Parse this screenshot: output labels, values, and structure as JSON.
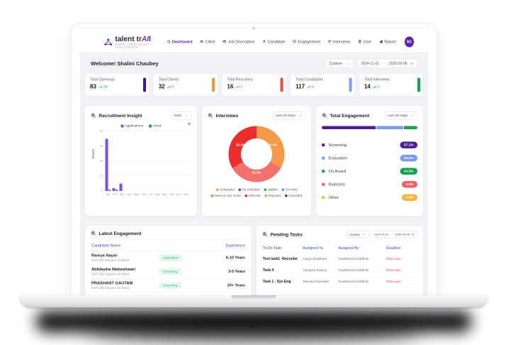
{
  "brand": {
    "name_prefix": "talent tr",
    "name_accent": "AI",
    "name_suffix": "l",
    "tagline": "SPEED | PRECISION | INTELLIGENCE"
  },
  "navbar": {
    "items": [
      {
        "label": "Dashboard",
        "icon": "home-icon",
        "active": true
      },
      {
        "label": "Client",
        "icon": "users-icon",
        "active": false
      },
      {
        "label": "Job Description",
        "icon": "briefcase-icon",
        "active": false
      },
      {
        "label": "Candidate",
        "icon": "user-icon",
        "active": false
      },
      {
        "label": "Engagement",
        "icon": "engagement-icon",
        "active": false
      },
      {
        "label": "Interviews",
        "icon": "interview-icon",
        "active": false
      },
      {
        "label": "User",
        "icon": "building-icon",
        "active": false
      },
      {
        "label": "Report",
        "icon": "report-icon",
        "active": false
      }
    ],
    "avatar_initials": "SC"
  },
  "welcome": {
    "greeting": "Welcome! Shalini Chaubey",
    "preset": "Custom",
    "date_start": "2024-11-01",
    "date_separator": "→",
    "date_end": "2025-03-06"
  },
  "stats": [
    {
      "label": "Total Openings",
      "value": "83",
      "delta": "30",
      "accent": "#47109e"
    },
    {
      "label": "Total Clients",
      "value": "32",
      "delta": "6",
      "accent": "#f8992d"
    },
    {
      "label": "Total Recruiters",
      "value": "16",
      "delta": "1",
      "accent": "#f4453e"
    },
    {
      "label": "Total Candidates",
      "value": "117",
      "delta": "4",
      "accent": "#7c9bf4"
    },
    {
      "label": "Total Interviews",
      "value": "14",
      "delta": "3",
      "accent": "#12a34e"
    }
  ],
  "chart_data": [
    {
      "type": "bar",
      "title": "Recruitment Insight",
      "filter": "2025",
      "ylabel": "Counts",
      "ylim": [
        0,
        40
      ],
      "yticks": [
        40,
        30,
        20,
        10,
        0
      ],
      "categories": [
        "Jan",
        "Feb",
        "Mar",
        "Apr",
        "May",
        "Jun",
        "Jul",
        "Aug",
        "Sep",
        "Oct",
        "Nov",
        "Dec"
      ],
      "series": [
        {
          "name": "Applications",
          "color": "#7b52e3",
          "values": [
            35,
            2,
            5,
            0,
            0,
            0,
            0,
            0,
            0,
            0,
            0,
            0
          ]
        },
        {
          "name": "Hired",
          "color": "#1fa750",
          "values": [
            1,
            1,
            0,
            0,
            0,
            0,
            0,
            0,
            0,
            0,
            0,
            0
          ]
        }
      ]
    },
    {
      "type": "donut",
      "title": "Interviews",
      "filter": "Last 30 Days",
      "slices": [
        {
          "label": "Scheduled",
          "pct_label": "33.3%",
          "value": 33.3,
          "color": "#f2994a"
        },
        {
          "label": "Move to next round",
          "pct_label": "33.3%",
          "value": 33.3,
          "color": "#f2716d"
        },
        {
          "label": "Selected",
          "pct_label": "33.3%",
          "value": 33.3,
          "color": "#eb2d2e"
        }
      ],
      "legend": [
        {
          "label": "Scheduled",
          "color": "#f2994a"
        },
        {
          "label": "Re-Schedule",
          "color": "#4338ca"
        },
        {
          "label": "Waitlist",
          "color": "#18a64b"
        },
        {
          "label": "On Hold",
          "color": "#5b8def"
        },
        {
          "label": "Move to next round",
          "color": "#f2716d"
        },
        {
          "label": "Selected",
          "color": "#eb2d2e"
        },
        {
          "label": "Rejected",
          "color": "#f2994a"
        },
        {
          "label": "Cancelled",
          "color": "#4c1d95"
        }
      ]
    }
  ],
  "engagement": {
    "title": "Total Engagement",
    "filter": "Last 30 Days",
    "rows": [
      {
        "label": "Screening",
        "pct": "57.1%",
        "value": 57.1,
        "color": "#4c1d95"
      },
      {
        "label": "Evaluation",
        "pct": "28.6%",
        "value": 28.6,
        "color": "#7c9bf4"
      },
      {
        "label": "On-Board",
        "pct": "14.3%",
        "value": 14.3,
        "color": "#12a34e"
      },
      {
        "label": "Rejected",
        "pct": "0.0%",
        "value": 0,
        "color": "#f4605c"
      },
      {
        "label": "Other",
        "pct": "0.0%",
        "value": 0,
        "color": "#f5b53f"
      }
    ]
  },
  "latest_engagement": {
    "title": "Latest Engagement",
    "columns": [
      "Candidate Name",
      "Experience"
    ],
    "rows": [
      {
        "name": "Ramya Nayar",
        "role": "SAP QM Solution Architect",
        "status": "evaluation",
        "experience": "6-10 Years"
      },
      {
        "name": "Abhilasha Maheshwari",
        "role": "SAP QM Solution Architect",
        "status": "screening",
        "experience": "3-5 Years"
      },
      {
        "name": "PRASHANT GAUTAM",
        "role": "SAP QM Solution Architect",
        "status": "screening",
        "experience": "10+ Years"
      }
    ]
  },
  "pending_tasks": {
    "title": "Pending Tasks",
    "preset": "Custom",
    "date_start": "2024-11-01",
    "date_separator": "→",
    "date_end": "2025-03-06",
    "columns": [
      "To Do Task",
      "Assigned To",
      "Assigned By",
      "Deadline"
    ],
    "rows": [
      {
        "task": "Test task1 -Recruiter",
        "assigned_to": "Aarya Gowtham",
        "assigned_by": "Sowthamini Karthick",
        "deadline": "Time over"
      },
      {
        "task": "Task 4",
        "assigned_to": "Sanjana Sivaraj",
        "assigned_by": "Sowthamini Karthick",
        "deadline": "Time over"
      },
      {
        "task": "Task 1 - Sys Eng",
        "assigned_to": "Renuka Ravinder",
        "assigned_by": "Sowthamini Karthick",
        "deadline": "Time over"
      }
    ]
  }
}
